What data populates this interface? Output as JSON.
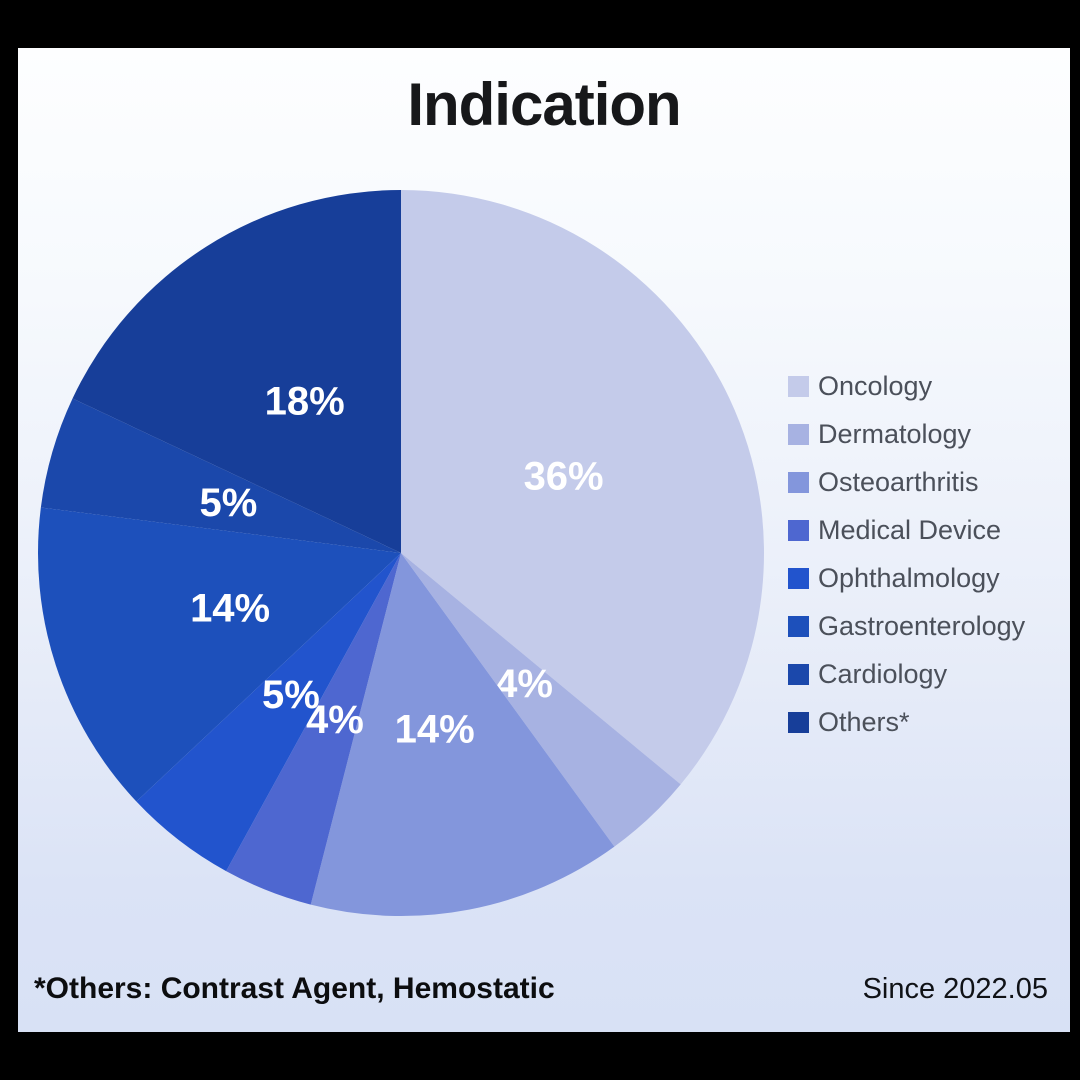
{
  "title": "Indication",
  "footnote": "*Others: Contrast Agent, Hemostatic",
  "since_label": "Since 2022.05",
  "chart_data": {
    "type": "pie",
    "title": "Indication",
    "start_angle_deg": 0,
    "direction": "clockwise",
    "legend_position": "right",
    "categories": [
      "Oncology",
      "Dermatology",
      "Osteoarthritis",
      "Medical Device",
      "Ophthalmology",
      "Gastroenterology",
      "Cardiology",
      "Others*"
    ],
    "values": [
      36,
      4,
      14,
      4,
      5,
      14,
      5,
      18
    ],
    "unit": "%",
    "colors": [
      "#c4cbea",
      "#a7b2e2",
      "#8396dc",
      "#4e67d0",
      "#2254cd",
      "#1d50bb",
      "#1b48ab",
      "#173e99"
    ],
    "label_color": "#ffffff",
    "label_radius_ratio": 0.495
  }
}
